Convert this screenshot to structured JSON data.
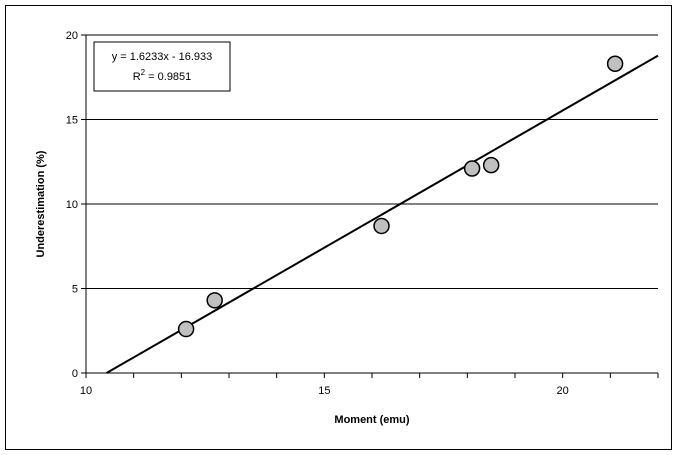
{
  "chart_data": {
    "type": "scatter",
    "title": "",
    "xlabel": "Moment (emu)",
    "ylabel": "Underestimation (%)",
    "xlim": [
      10,
      22
    ],
    "ylim": [
      0,
      20
    ],
    "xticks": [
      "10",
      "15",
      "20"
    ],
    "yticks": [
      "0",
      "5",
      "10",
      "15",
      "20"
    ],
    "grid": "horizontal",
    "points": [
      {
        "x": 12.1,
        "y": 2.6
      },
      {
        "x": 12.7,
        "y": 4.3
      },
      {
        "x": 16.2,
        "y": 8.7
      },
      {
        "x": 18.1,
        "y": 12.1
      },
      {
        "x": 18.5,
        "y": 12.3
      },
      {
        "x": 21.1,
        "y": 18.3
      }
    ],
    "trendline": {
      "slope": 1.6233,
      "intercept": -16.933,
      "equation_text": "y = 1.6233x - 16.933",
      "r2_prefix": "R",
      "r2_exponent": "2",
      "r2_suffix": " = 0.9851"
    },
    "marker_fill": "#c0c0c0",
    "marker_stroke": "#000000"
  }
}
